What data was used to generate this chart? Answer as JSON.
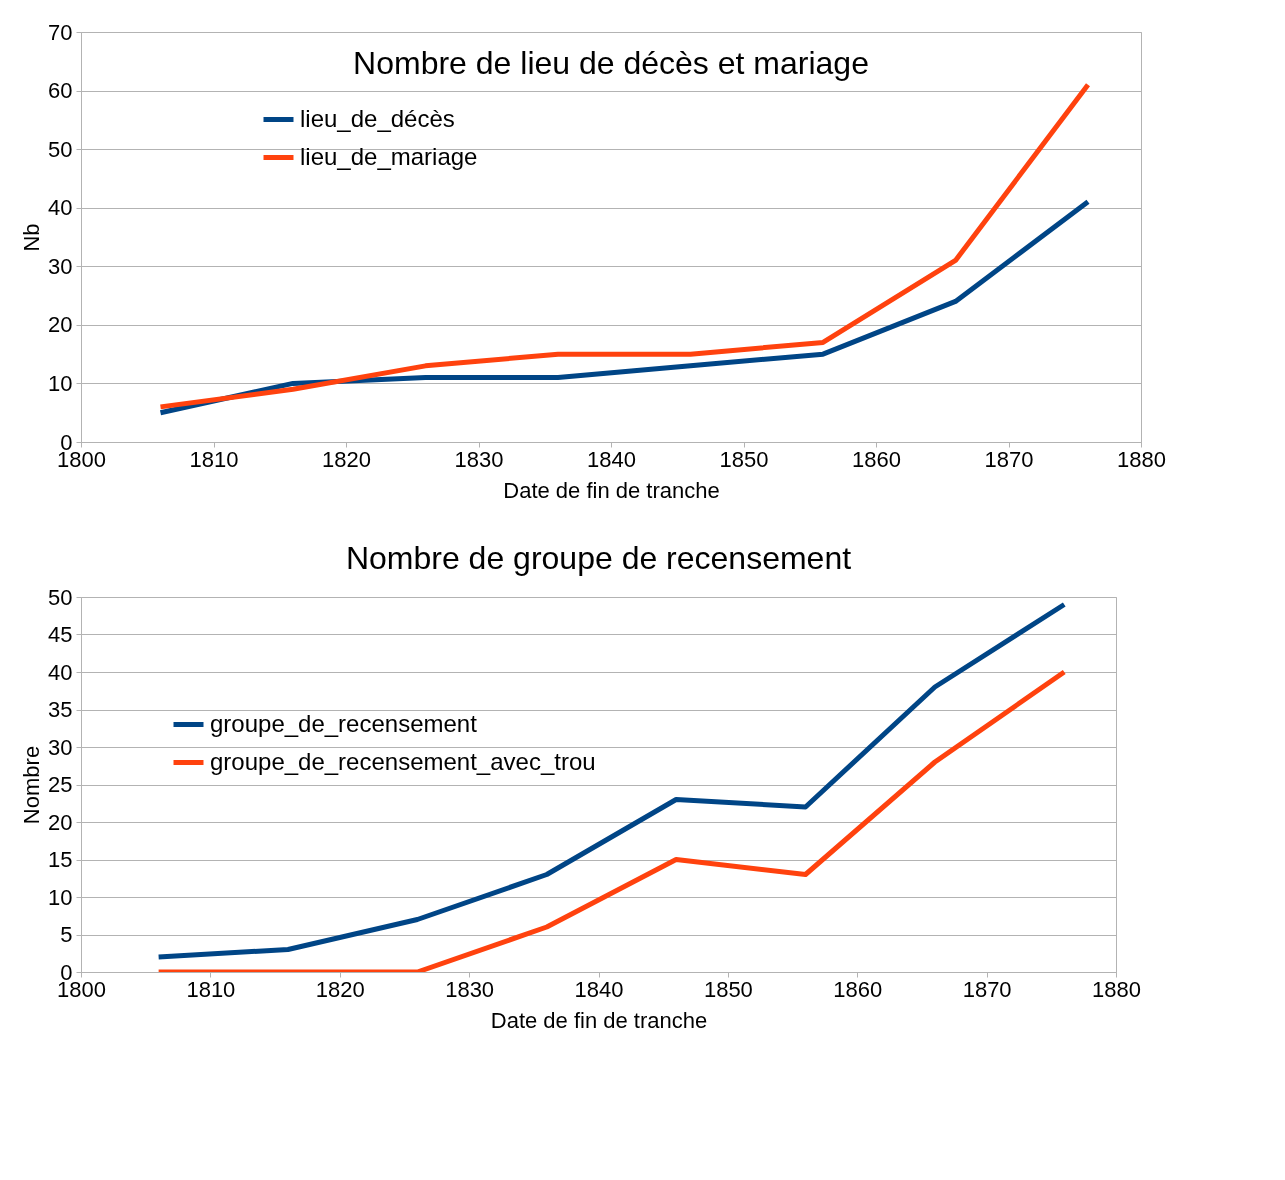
{
  "chart_data": [
    {
      "type": "line",
      "title": "Nombre de lieu de décès et mariage",
      "xlabel": "Date de fin de tranche",
      "ylabel": "Nb",
      "x": [
        1806,
        1816,
        1826,
        1836,
        1846,
        1856,
        1866,
        1876
      ],
      "series": [
        {
          "name": "lieu_de_décès",
          "color": "#004586",
          "values": [
            5,
            10,
            11,
            11,
            13,
            15,
            24,
            41
          ]
        },
        {
          "name": "lieu_de_mariage",
          "color": "#ff420e",
          "values": [
            6,
            9,
            13,
            15,
            15,
            17,
            31,
            61
          ]
        }
      ],
      "xlim": [
        1800,
        1880
      ],
      "xticks": [
        1800,
        1810,
        1820,
        1830,
        1840,
        1850,
        1860,
        1870,
        1880
      ],
      "ylim": [
        0,
        70
      ],
      "yticks": [
        0,
        10,
        20,
        30,
        40,
        50,
        60,
        70
      ],
      "grid": "y",
      "legend": "top left",
      "line_style": "solid"
    },
    {
      "type": "line",
      "title": "Nombre de groupe de recensement",
      "xlabel": "Date de fin de tranche",
      "ylabel": "Nombre",
      "x": [
        1806,
        1816,
        1826,
        1836,
        1846,
        1856,
        1866,
        1876
      ],
      "series": [
        {
          "name": "groupe_de_recensement",
          "color": "#004586",
          "values": [
            2,
            3,
            7,
            13,
            23,
            22,
            38,
            49
          ]
        },
        {
          "name": "groupe_de_recensement_avec_trou",
          "color": "#ff420e",
          "values": [
            0,
            0,
            0,
            6,
            15,
            13,
            28,
            40
          ]
        }
      ],
      "xlim": [
        1800,
        1880
      ],
      "xticks": [
        1800,
        1810,
        1820,
        1830,
        1840,
        1850,
        1860,
        1870,
        1880
      ],
      "ylim": [
        0,
        50
      ],
      "yticks": [
        0,
        5,
        10,
        15,
        20,
        25,
        30,
        35,
        40,
        45,
        50
      ],
      "grid": "y",
      "legend": "left",
      "line_style": "solid"
    }
  ]
}
